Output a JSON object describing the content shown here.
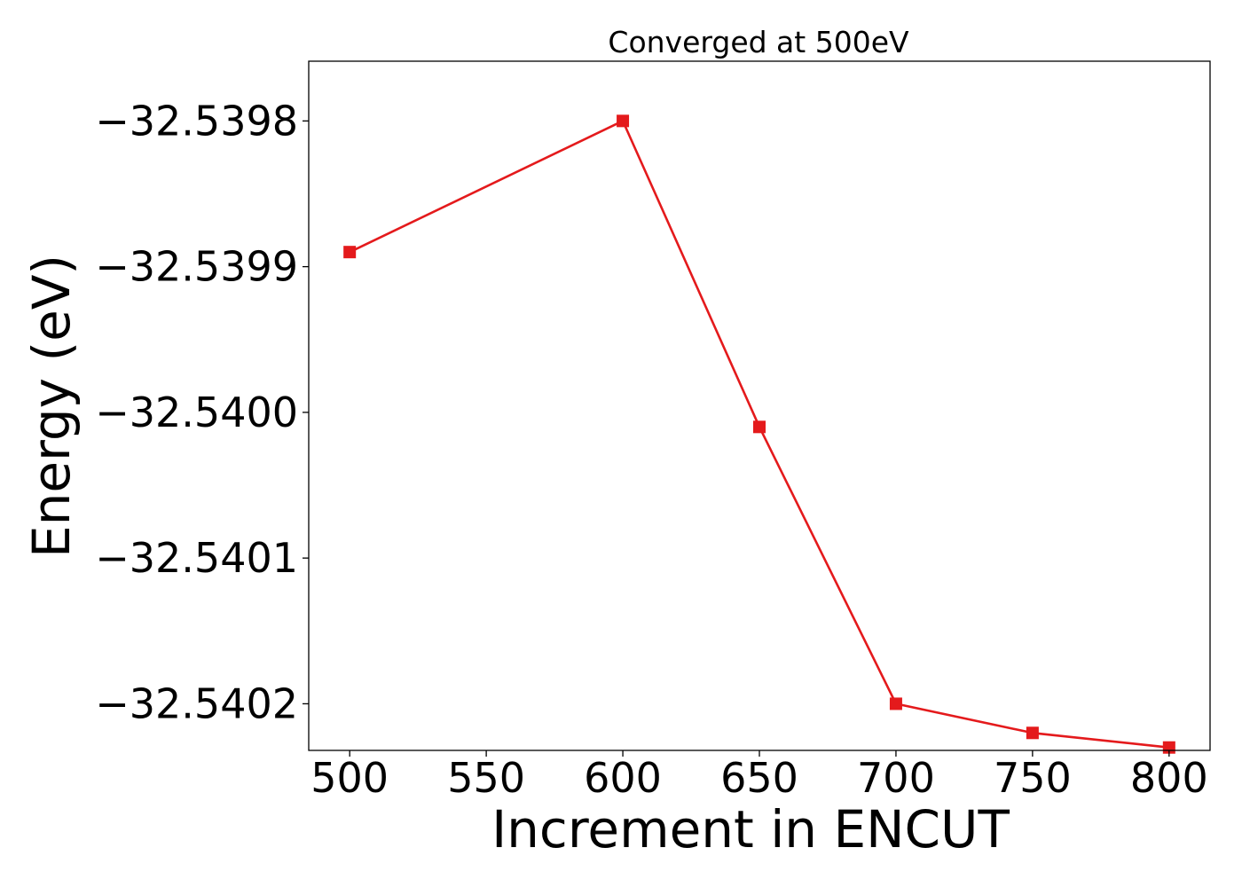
{
  "chart_data": {
    "type": "line",
    "title": "Converged at 500eV",
    "xlabel": "Increment in ENCUT",
    "ylabel": "Energy (eV)",
    "x": [
      500,
      600,
      650,
      700,
      750,
      800
    ],
    "series": [
      {
        "values": [
          -32.53989,
          -32.5398,
          -32.54001,
          -32.5402,
          -32.54022,
          -32.54023
        ],
        "color": "#e41a1c",
        "marker": "square"
      }
    ],
    "xticks": [
      500,
      550,
      600,
      650,
      700,
      750,
      800
    ],
    "xtick_labels": [
      "500",
      "550",
      "600",
      "650",
      "700",
      "750",
      "800"
    ],
    "yticks": [
      -32.5398,
      -32.5399,
      -32.54,
      -32.5401,
      -32.5402
    ],
    "ytick_labels": [
      "−32.5398",
      "−32.5399",
      "−32.5400",
      "−32.5401",
      "−32.5402"
    ],
    "xlim": [
      485,
      815
    ],
    "ylim": [
      -32.540232,
      -32.539759
    ],
    "grid": false,
    "legend": "none"
  }
}
